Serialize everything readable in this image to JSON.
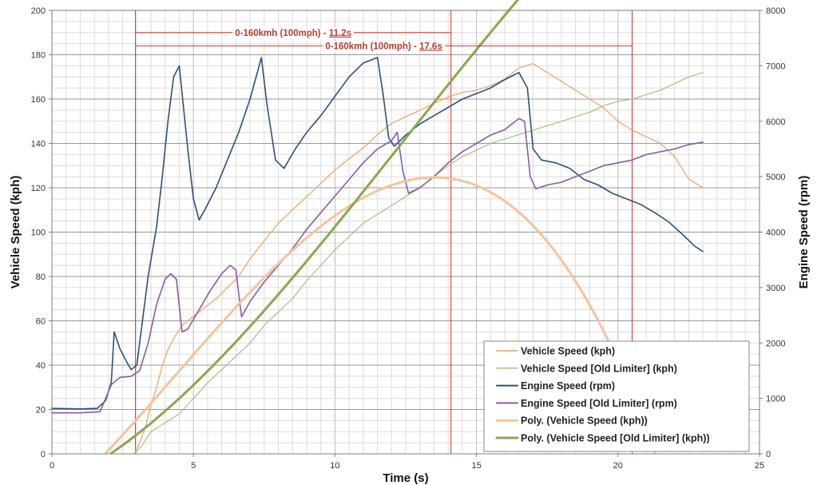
{
  "chart_data": {
    "type": "line",
    "xlabel": "Time (s)",
    "ylabel": "Vehicle Speed (kph)",
    "y2label": "Engine Speed (rpm)",
    "xlim": [
      0,
      25
    ],
    "ylim": [
      0,
      200
    ],
    "y2lim": [
      0,
      8000
    ],
    "x_ticks": [
      0,
      5,
      10,
      15,
      20,
      25
    ],
    "y_ticks": [
      0,
      20,
      40,
      60,
      80,
      100,
      120,
      140,
      160,
      180,
      200
    ],
    "y2_ticks": [
      0,
      1000,
      2000,
      3000,
      4000,
      5000,
      6000,
      7000,
      8000
    ],
    "grid": true,
    "legend_position": "bottom-right",
    "colors": {
      "vehicle_speed": "#f0a060",
      "vehicle_speed_old": "#a8c080",
      "engine_speed": "#2f4f7f",
      "engine_speed_old": "#8a5aa8",
      "poly_vehicle_speed": "#f5c49c",
      "poly_vehicle_speed_old": "#8aa84e",
      "marker": "#d9302a"
    },
    "markers": [
      {
        "x": 2.95
      },
      {
        "x": 14.1
      },
      {
        "x": 20.5
      }
    ],
    "annotations": [
      {
        "text_prefix": "0-160kmh (100mph) - ",
        "text_value": "11.2s",
        "from": 2.95,
        "to": 14.1,
        "y": 190
      },
      {
        "text_prefix": "0-160kmh (100mph) - ",
        "text_value": "17.6s",
        "from": 2.95,
        "to": 20.5,
        "y": 184
      }
    ],
    "series": [
      {
        "name": "Vehicle Speed (kph)",
        "axis": "left",
        "color_key": "vehicle_speed",
        "width": 1.2,
        "points": [
          [
            2.9,
            0
          ],
          [
            3.1,
            5
          ],
          [
            3.3,
            12
          ],
          [
            3.5,
            22
          ],
          [
            3.7,
            30
          ],
          [
            3.9,
            40
          ],
          [
            4.1,
            47
          ],
          [
            4.3,
            52
          ],
          [
            4.6,
            58
          ],
          [
            5.0,
            62
          ],
          [
            5.4,
            66
          ],
          [
            5.8,
            70
          ],
          [
            6.2,
            75
          ],
          [
            6.6,
            80
          ],
          [
            7.0,
            88
          ],
          [
            7.5,
            96
          ],
          [
            8.0,
            104
          ],
          [
            8.5,
            110
          ],
          [
            9.0,
            116
          ],
          [
            9.5,
            122
          ],
          [
            10.0,
            128
          ],
          [
            10.5,
            133
          ],
          [
            11.0,
            138
          ],
          [
            11.5,
            144
          ],
          [
            12.0,
            149
          ],
          [
            12.5,
            152
          ],
          [
            13.0,
            155
          ],
          [
            13.5,
            158
          ],
          [
            14.0,
            161
          ],
          [
            14.5,
            163
          ],
          [
            15.0,
            164
          ],
          [
            15.5,
            166
          ],
          [
            16.0,
            169
          ],
          [
            16.5,
            174
          ],
          [
            17.0,
            176
          ],
          [
            17.5,
            172
          ],
          [
            18.0,
            168
          ],
          [
            18.5,
            164
          ],
          [
            19.0,
            160
          ],
          [
            19.5,
            156
          ],
          [
            20.0,
            150
          ],
          [
            20.5,
            146
          ],
          [
            21.0,
            143
          ],
          [
            21.5,
            140
          ],
          [
            22.0,
            134
          ],
          [
            22.5,
            124
          ],
          [
            23.0,
            120
          ]
        ]
      },
      {
        "name": "Vehicle Speed [Old Limiter] (kph)",
        "axis": "left",
        "color_key": "vehicle_speed_old",
        "width": 1.2,
        "points": [
          [
            2.9,
            0
          ],
          [
            3.2,
            4
          ],
          [
            3.5,
            10
          ],
          [
            4.0,
            14
          ],
          [
            4.5,
            18
          ],
          [
            5.0,
            25
          ],
          [
            5.5,
            32
          ],
          [
            6.0,
            38
          ],
          [
            6.5,
            44
          ],
          [
            7.0,
            50
          ],
          [
            7.5,
            58
          ],
          [
            8.0,
            64
          ],
          [
            8.5,
            70
          ],
          [
            9.0,
            78
          ],
          [
            9.5,
            85
          ],
          [
            10.0,
            92
          ],
          [
            10.5,
            98
          ],
          [
            11.0,
            104
          ],
          [
            11.5,
            108
          ],
          [
            12.0,
            112
          ],
          [
            12.5,
            116
          ],
          [
            13.0,
            120
          ],
          [
            13.5,
            125
          ],
          [
            14.0,
            130
          ],
          [
            14.5,
            134
          ],
          [
            15.0,
            137
          ],
          [
            15.5,
            140
          ],
          [
            16.0,
            142
          ],
          [
            16.5,
            144
          ],
          [
            17.0,
            146
          ],
          [
            17.5,
            148
          ],
          [
            18.0,
            150
          ],
          [
            18.5,
            152
          ],
          [
            19.0,
            154
          ],
          [
            19.5,
            157
          ],
          [
            20.0,
            159
          ],
          [
            20.5,
            160
          ],
          [
            21.0,
            162
          ],
          [
            21.5,
            164
          ],
          [
            22.0,
            167
          ],
          [
            22.5,
            170
          ],
          [
            23.0,
            172
          ]
        ]
      },
      {
        "name": "Engine Speed (rpm)",
        "axis": "right",
        "color_key": "engine_speed",
        "width": 1.6,
        "points": [
          [
            0.0,
            820
          ],
          [
            1.0,
            810
          ],
          [
            1.6,
            820
          ],
          [
            1.9,
            960
          ],
          [
            2.1,
            1300
          ],
          [
            2.2,
            2200
          ],
          [
            2.4,
            1900
          ],
          [
            2.6,
            1700
          ],
          [
            2.8,
            1520
          ],
          [
            3.0,
            1600
          ],
          [
            3.2,
            2400
          ],
          [
            3.4,
            3200
          ],
          [
            3.7,
            4100
          ],
          [
            3.9,
            5000
          ],
          [
            4.1,
            6000
          ],
          [
            4.3,
            6800
          ],
          [
            4.5,
            7000
          ],
          [
            4.6,
            6500
          ],
          [
            4.8,
            5500
          ],
          [
            5.0,
            4600
          ],
          [
            5.2,
            4220
          ],
          [
            5.4,
            4400
          ],
          [
            5.8,
            4800
          ],
          [
            6.2,
            5300
          ],
          [
            6.6,
            5800
          ],
          [
            7.0,
            6400
          ],
          [
            7.4,
            7150
          ],
          [
            7.6,
            6300
          ],
          [
            7.9,
            5300
          ],
          [
            8.2,
            5150
          ],
          [
            8.6,
            5500
          ],
          [
            9.0,
            5800
          ],
          [
            9.5,
            6100
          ],
          [
            10.0,
            6450
          ],
          [
            10.5,
            6800
          ],
          [
            11.0,
            7050
          ],
          [
            11.5,
            7150
          ],
          [
            11.7,
            6500
          ],
          [
            11.9,
            5700
          ],
          [
            12.1,
            5550
          ],
          [
            12.5,
            5750
          ],
          [
            13.0,
            5950
          ],
          [
            13.5,
            6100
          ],
          [
            14.0,
            6250
          ],
          [
            14.5,
            6400
          ],
          [
            15.0,
            6500
          ],
          [
            15.5,
            6600
          ],
          [
            16.0,
            6750
          ],
          [
            16.5,
            6880
          ],
          [
            16.8,
            6600
          ],
          [
            17.0,
            5500
          ],
          [
            17.3,
            5300
          ],
          [
            17.8,
            5250
          ],
          [
            18.3,
            5150
          ],
          [
            18.8,
            4950
          ],
          [
            19.3,
            4850
          ],
          [
            19.8,
            4700
          ],
          [
            20.3,
            4600
          ],
          [
            20.8,
            4500
          ],
          [
            21.3,
            4350
          ],
          [
            21.8,
            4180
          ],
          [
            22.3,
            3950
          ],
          [
            22.7,
            3750
          ],
          [
            23.0,
            3650
          ]
        ]
      },
      {
        "name": "Engine Speed [Old Limiter] (rpm)",
        "axis": "right",
        "color_key": "engine_speed_old",
        "width": 1.6,
        "points": [
          [
            0.0,
            740
          ],
          [
            1.0,
            740
          ],
          [
            1.7,
            760
          ],
          [
            1.9,
            1000
          ],
          [
            2.1,
            1250
          ],
          [
            2.4,
            1380
          ],
          [
            2.8,
            1400
          ],
          [
            3.1,
            1500
          ],
          [
            3.4,
            2000
          ],
          [
            3.7,
            2700
          ],
          [
            4.0,
            3150
          ],
          [
            4.2,
            3250
          ],
          [
            4.4,
            3150
          ],
          [
            4.6,
            2200
          ],
          [
            4.8,
            2250
          ],
          [
            5.2,
            2600
          ],
          [
            5.6,
            2950
          ],
          [
            6.0,
            3250
          ],
          [
            6.3,
            3400
          ],
          [
            6.5,
            3320
          ],
          [
            6.7,
            2470
          ],
          [
            7.0,
            2750
          ],
          [
            7.5,
            3100
          ],
          [
            8.0,
            3400
          ],
          [
            8.5,
            3700
          ],
          [
            9.0,
            4050
          ],
          [
            9.5,
            4350
          ],
          [
            10.0,
            4650
          ],
          [
            10.5,
            4950
          ],
          [
            11.0,
            5250
          ],
          [
            11.5,
            5500
          ],
          [
            12.0,
            5650
          ],
          [
            12.2,
            5800
          ],
          [
            12.4,
            5100
          ],
          [
            12.6,
            4700
          ],
          [
            13.0,
            4800
          ],
          [
            13.5,
            5000
          ],
          [
            14.0,
            5250
          ],
          [
            14.5,
            5450
          ],
          [
            15.0,
            5600
          ],
          [
            15.5,
            5750
          ],
          [
            16.0,
            5850
          ],
          [
            16.5,
            6050
          ],
          [
            16.7,
            6000
          ],
          [
            16.9,
            5000
          ],
          [
            17.1,
            4780
          ],
          [
            17.5,
            4850
          ],
          [
            18.0,
            4900
          ],
          [
            18.5,
            5000
          ],
          [
            19.0,
            5100
          ],
          [
            19.5,
            5200
          ],
          [
            20.0,
            5250
          ],
          [
            20.5,
            5300
          ],
          [
            21.0,
            5400
          ],
          [
            21.5,
            5450
          ],
          [
            22.0,
            5500
          ],
          [
            22.5,
            5580
          ],
          [
            23.0,
            5620
          ]
        ]
      },
      {
        "name": "Poly. (Vehicle Speed (kph))",
        "axis": "left",
        "color_key": "poly_vehicle_speed",
        "width": 3,
        "poly": [
          -23.58,
          11.31,
          0.76,
          -0.0581
        ],
        "range": [
          1.5,
          23.0
        ]
      },
      {
        "name": "Poly. (Vehicle Speed [Old Limiter] (kph))",
        "axis": "left",
        "color_key": "poly_vehicle_speed_old",
        "width": 3,
        "poly": [
          -14.66,
          5.42,
          0.8585,
          -0.02297
        ],
        "range": [
          1.5,
          23.0
        ]
      }
    ],
    "legend": [
      {
        "label": "Vehicle Speed (kph)",
        "color_key": "vehicle_speed",
        "width": 1.5
      },
      {
        "label": "Vehicle Speed [Old Limiter] (kph)",
        "color_key": "vehicle_speed_old",
        "width": 1.5
      },
      {
        "label": "Engine Speed (rpm)",
        "color_key": "engine_speed",
        "width": 2
      },
      {
        "label": "Engine Speed [Old Limiter] (rpm)",
        "color_key": "engine_speed_old",
        "width": 2
      },
      {
        "label": "Poly. (Vehicle Speed (kph))",
        "color_key": "poly_vehicle_speed",
        "width": 3
      },
      {
        "label": "Poly. (Vehicle Speed [Old Limiter] (kph))",
        "color_key": "poly_vehicle_speed_old",
        "width": 3
      }
    ]
  }
}
